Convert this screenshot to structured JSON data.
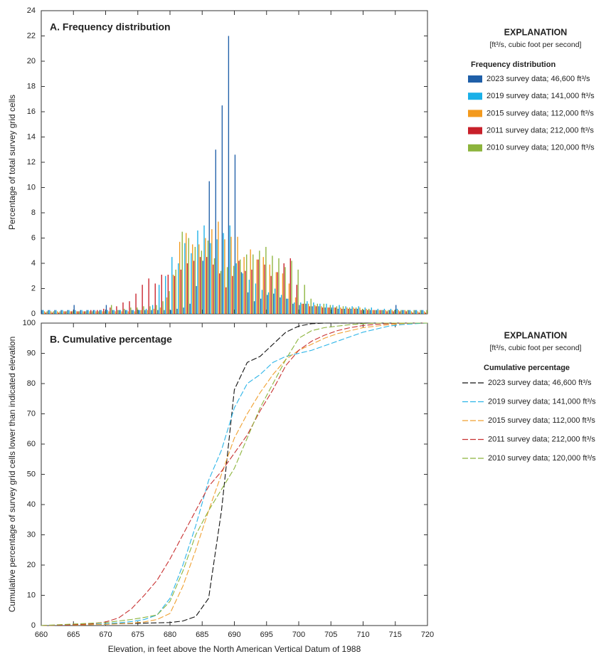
{
  "chart_data": [
    {
      "type": "histogram",
      "title": "A. Frequency distribution",
      "ylabel": "Percentage of total survey grid cells",
      "legend_title": "EXPLANATION",
      "legend_subtitle": "[ft³/s, cubic foot per second]",
      "legend_heading": "Frequency distribution",
      "xlim": [
        660,
        720
      ],
      "xticks": [
        660,
        665,
        670,
        675,
        680,
        685,
        690,
        695,
        700,
        705,
        710,
        715,
        720
      ],
      "ylim": [
        0,
        24
      ],
      "yticks": [
        0,
        2,
        4,
        6,
        8,
        10,
        12,
        14,
        16,
        18,
        20,
        22,
        24
      ],
      "bins": [
        660,
        661,
        662,
        663,
        664,
        665,
        666,
        667,
        668,
        669,
        670,
        671,
        672,
        673,
        674,
        675,
        676,
        677,
        678,
        679,
        680,
        681,
        682,
        683,
        684,
        685,
        686,
        687,
        688,
        689,
        690,
        691,
        692,
        693,
        694,
        695,
        696,
        697,
        698,
        699,
        700,
        701,
        702,
        703,
        704,
        705,
        706,
        707,
        708,
        709,
        710,
        711,
        712,
        713,
        714,
        715,
        716,
        717,
        718,
        719,
        720
      ],
      "series": [
        {
          "name": "2023 survey data; 46,600 ft³/s",
          "color": "#1f5fa8",
          "values": [
            0.3,
            0.3,
            0.3,
            0.3,
            0.3,
            0.7,
            0.3,
            0.3,
            0.3,
            0.3,
            0.7,
            0.3,
            0.3,
            0.3,
            0.3,
            0.3,
            0.3,
            0.3,
            0.3,
            0.3,
            0.3,
            0.4,
            0.5,
            0.8,
            2.2,
            4.2,
            10.5,
            13,
            16.5,
            22,
            12.6,
            3.3,
            1.7,
            1.0,
            1.2,
            1.5,
            1.6,
            1.3,
            1.2,
            0.8,
            0.7,
            0.8,
            0.6,
            0.6,
            0.5,
            0.5,
            0.4,
            0.4,
            0.4,
            0.4,
            0.3,
            0.3,
            0.3,
            0.3,
            0.3,
            0.7,
            0.3,
            0.3,
            0.3,
            0.3
          ]
        },
        {
          "name": "2019 survey data; 141,000 ft³/s",
          "color": "#1ab0e8",
          "values": [
            0.3,
            0.3,
            0.3,
            0.3,
            0.3,
            0.3,
            0.3,
            0.3,
            0.3,
            0.3,
            0.3,
            0.3,
            0.3,
            0.3,
            0.3,
            0.3,
            0.4,
            0.7,
            2.3,
            3.0,
            4.5,
            4.0,
            5.6,
            4.8,
            6.6,
            7.0,
            5.6,
            5.9,
            6.4,
            7.0,
            4.0,
            3.2,
            2.7,
            2.4,
            1.9,
            1.7,
            2.0,
            1.5,
            1.2,
            0.9,
            0.9,
            1.0,
            0.9,
            0.8,
            0.8,
            0.7,
            0.7,
            0.6,
            0.6,
            0.6,
            0.5,
            0.5,
            0.4,
            0.4,
            0.4,
            0.4,
            0.3,
            0.3,
            0.3,
            0.3
          ]
        },
        {
          "name": "2015 survey data; 112,000 ft³/s",
          "color": "#f39a1e",
          "values": [
            0.2,
            0.2,
            0.2,
            0.2,
            0.2,
            0.2,
            0.2,
            0.2,
            0.2,
            0.2,
            0.2,
            0.2,
            0.2,
            0.2,
            0.2,
            0.3,
            0.3,
            0.4,
            0.5,
            1.3,
            3.1,
            5.7,
            6.4,
            5.5,
            5.5,
            6.0,
            6.7,
            7.3,
            5.9,
            6.1,
            6.1,
            4.5,
            5.1,
            4.3,
            4.5,
            3.9,
            3.3,
            3.2,
            2.4,
            1.3,
            0.8,
            0.8,
            0.7,
            0.6,
            0.5,
            0.5,
            0.5,
            0.5,
            0.5,
            0.5,
            0.4,
            0.3,
            0.3,
            0.3,
            0.3,
            0.3,
            0.3,
            0.2,
            0.2,
            0.2
          ]
        },
        {
          "name": "2011 survey data; 212,000 ft³/s",
          "color": "#c8202a",
          "values": [
            0.1,
            0.1,
            0.1,
            0.2,
            0.2,
            0.2,
            0.2,
            0.3,
            0.3,
            0.4,
            0.5,
            0.6,
            0.9,
            1.0,
            1.6,
            2.3,
            2.8,
            2.4,
            3.1,
            3.1,
            3.0,
            3.5,
            4.0,
            4.2,
            4.5,
            4.5,
            3.9,
            3.2,
            2.1,
            3.0,
            4.2,
            3.4,
            3.5,
            4.3,
            3.9,
            3.0,
            3.3,
            4.0,
            4.4,
            2.3,
            0.8,
            0.6,
            0.6,
            0.5,
            0.5,
            0.5,
            0.4,
            0.4,
            0.4,
            0.3,
            0.3,
            0.3,
            0.3,
            0.2,
            0.2,
            0.2,
            0.2,
            0.1,
            0.1,
            0.1
          ]
        },
        {
          "name": "2010 survey data; 120,000 ft³/s",
          "color": "#8cb43c",
          "values": [
            0.2,
            0.2,
            0.2,
            0.2,
            0.2,
            0.2,
            0.2,
            0.2,
            0.2,
            0.2,
            0.7,
            0.3,
            0.4,
            0.5,
            0.5,
            0.6,
            0.6,
            0.7,
            1.0,
            1.8,
            3.5,
            6.5,
            6.0,
            5.3,
            5.0,
            5.8,
            4.4,
            3.4,
            3.7,
            3.8,
            4.3,
            4.7,
            4.7,
            5.0,
            5.3,
            4.6,
            4.4,
            3.7,
            4.2,
            3.5,
            2.3,
            1.2,
            0.8,
            0.8,
            0.7,
            0.6,
            0.6,
            0.5,
            0.5,
            0.4,
            0.4,
            0.3,
            0.3,
            0.3,
            0.3,
            0.3,
            0.3,
            0.3,
            0.3,
            0.3
          ]
        }
      ]
    },
    {
      "type": "line",
      "title": "B. Cumulative percentage",
      "ylabel": "Cumulative percentage of survey grid cells lower than indicated elevation",
      "xlabel": "Elevation, in feet above the North American Vertical Datum of 1988",
      "legend_title": "EXPLANATION",
      "legend_subtitle": "[ft³/s, cubic foot per second]",
      "legend_heading": "Cumulative percentage",
      "dashed": true,
      "xlim": [
        660,
        720
      ],
      "xticks": [
        660,
        665,
        670,
        675,
        680,
        685,
        690,
        695,
        700,
        705,
        710,
        715,
        720
      ],
      "ylim": [
        0,
        100
      ],
      "yticks": [
        0,
        10,
        20,
        30,
        40,
        50,
        60,
        70,
        80,
        90,
        100
      ],
      "x": [
        660,
        662,
        664,
        666,
        668,
        670,
        672,
        674,
        676,
        678,
        680,
        682,
        684,
        686,
        688,
        690,
        692,
        694,
        696,
        698,
        700,
        702,
        704,
        706,
        708,
        710,
        712,
        714,
        716,
        718,
        720
      ],
      "series": [
        {
          "name": "2023 survey data; 46,600 ft³/s",
          "color": "#111111",
          "values": [
            0,
            0.1,
            0.2,
            0.3,
            0.4,
            0.5,
            0.6,
            0.7,
            0.8,
            0.9,
            1.0,
            1.5,
            3,
            9,
            38,
            78,
            87,
            89,
            93,
            97,
            99,
            99.8,
            100,
            100,
            100,
            100,
            100,
            100,
            100,
            100,
            100
          ]
        },
        {
          "name": "2019 survey data; 141,000 ft³/s",
          "color": "#2ab4e8",
          "values": [
            0,
            0.1,
            0.2,
            0.3,
            0.4,
            0.6,
            0.9,
            1.3,
            2,
            3.5,
            9,
            20,
            33,
            48,
            58,
            72,
            80,
            83,
            87,
            89,
            90,
            91,
            92.5,
            94,
            95.5,
            97,
            98,
            99,
            99.5,
            99.8,
            100
          ]
        },
        {
          "name": "2015 survey data; 112,000 ft³/s",
          "color": "#f0a030",
          "values": [
            0,
            0.1,
            0.2,
            0.2,
            0.3,
            0.4,
            0.6,
            0.8,
            1.2,
            2,
            4,
            13,
            25,
            38,
            50,
            62,
            70,
            77,
            83,
            88,
            91,
            93,
            95,
            96.5,
            97.5,
            98.5,
            99,
            99.5,
            99.8,
            100,
            100
          ]
        },
        {
          "name": "2011 survey data; 212,000 ft³/s",
          "color": "#c83030",
          "values": [
            0,
            0.1,
            0.2,
            0.4,
            0.6,
            1.2,
            2.5,
            5.5,
            10,
            15,
            22,
            30,
            38,
            46,
            51,
            57,
            63,
            71,
            78,
            86,
            91,
            94,
            96,
            97.5,
            98.5,
            99.2,
            99.6,
            99.8,
            100,
            100,
            100
          ]
        },
        {
          "name": "2010 survey data; 120,000 ft³/s",
          "color": "#8cb43c",
          "values": [
            0,
            0.2,
            0.4,
            0.6,
            0.8,
            1,
            1.5,
            2,
            2.7,
            3.5,
            8,
            18,
            30,
            38,
            45,
            52,
            62,
            72,
            80,
            88,
            95,
            97.5,
            98.5,
            99,
            99.5,
            99.8,
            100,
            100,
            100,
            100,
            100
          ]
        }
      ]
    }
  ]
}
